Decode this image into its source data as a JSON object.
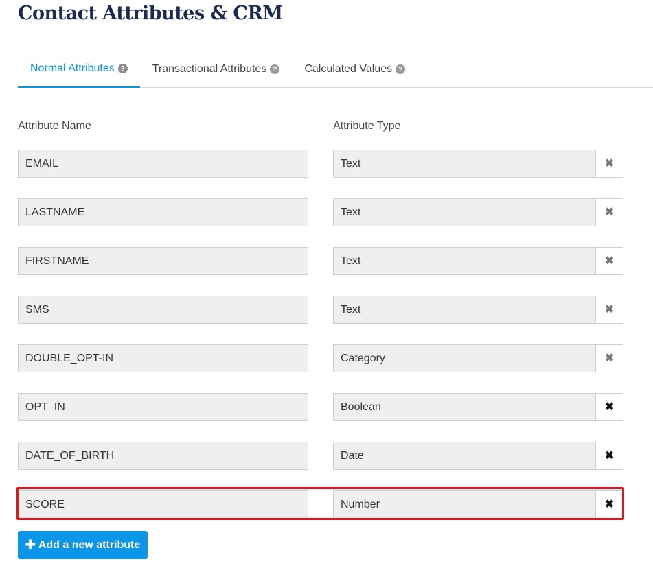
{
  "page": {
    "title": "Contact Attributes & CRM"
  },
  "tabs": [
    {
      "label": "Normal Attributes",
      "active": true
    },
    {
      "label": "Transactional Attributes",
      "active": false
    },
    {
      "label": "Calculated Values",
      "active": false
    }
  ],
  "columns": {
    "name": "Attribute Name",
    "type": "Attribute Type"
  },
  "attributes": [
    {
      "name": "EMAIL",
      "type": "Text"
    },
    {
      "name": "LASTNAME",
      "type": "Text"
    },
    {
      "name": "FIRSTNAME",
      "type": "Text"
    },
    {
      "name": "SMS",
      "type": "Text"
    },
    {
      "name": "DOUBLE_OPT-IN",
      "type": "Category"
    },
    {
      "name": "OPT_IN",
      "type": "Boolean"
    },
    {
      "name": "DATE_OF_BIRTH",
      "type": "Date"
    },
    {
      "name": "SCORE",
      "type": "Number"
    }
  ],
  "icons": {
    "help": "question-circle-icon",
    "delete": "times-icon",
    "add": "plus-icon"
  },
  "actions": {
    "add_label": "Add a new attribute"
  },
  "colors": {
    "accent": "#0b96d8",
    "button": "#0b96e8",
    "highlight": "#e5141b",
    "title": "#1b2a4e"
  }
}
